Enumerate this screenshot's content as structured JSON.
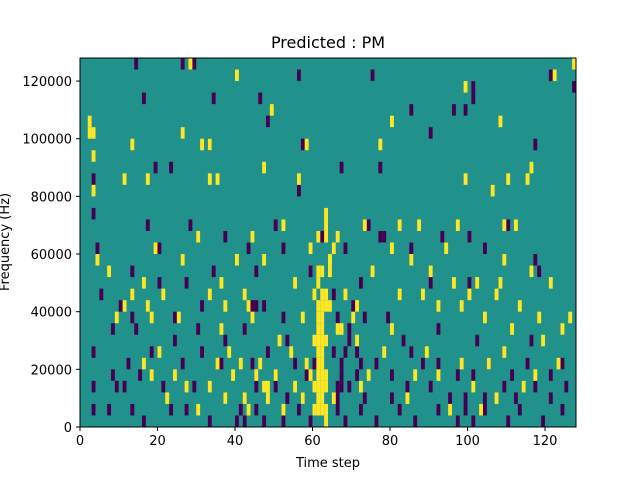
{
  "chart_data": {
    "type": "heatmap",
    "title": "Predicted : PM",
    "xlabel": "Time step",
    "ylabel": "Frequency (Hz)",
    "xlim": [
      0,
      128
    ],
    "ylim": [
      0,
      128000
    ],
    "xticks": [
      0,
      20,
      40,
      60,
      80,
      100,
      120
    ],
    "yticks": [
      0,
      20000,
      40000,
      60000,
      80000,
      100000,
      120000
    ],
    "colors": {
      "background": "#21918c",
      "low": "#440154",
      "high": "#fde725"
    },
    "cell": {
      "dt": 1,
      "df": 4000
    },
    "cells_high": [
      [
        3,
        20
      ],
      [
        3,
        23
      ],
      [
        3,
        25
      ],
      [
        28,
        31
      ],
      [
        40,
        30
      ],
      [
        49,
        27
      ],
      [
        80,
        26
      ],
      [
        99,
        29
      ],
      [
        108,
        26
      ],
      [
        116,
        22
      ],
      [
        122,
        30
      ],
      [
        127,
        31
      ],
      [
        2,
        25
      ],
      [
        2,
        26
      ],
      [
        13,
        24
      ],
      [
        26,
        25
      ],
      [
        31,
        24
      ],
      [
        33,
        24
      ],
      [
        58,
        24
      ],
      [
        77,
        24
      ],
      [
        11,
        21
      ],
      [
        17,
        21
      ],
      [
        33,
        21
      ],
      [
        35,
        21
      ],
      [
        47,
        22
      ],
      [
        56,
        21
      ],
      [
        99,
        21
      ],
      [
        106,
        20
      ],
      [
        110,
        21
      ],
      [
        115,
        21
      ],
      [
        44,
        16
      ],
      [
        61,
        16
      ],
      [
        52,
        17
      ],
      [
        73,
        17
      ],
      [
        82,
        17
      ],
      [
        87,
        17
      ],
      [
        97,
        17
      ],
      [
        109,
        17
      ],
      [
        112,
        17
      ],
      [
        40,
        14
      ],
      [
        47,
        14
      ],
      [
        64,
        14
      ],
      [
        36,
        12
      ],
      [
        42,
        11
      ],
      [
        55,
        12
      ],
      [
        82,
        11
      ],
      [
        100,
        11
      ],
      [
        102,
        12
      ],
      [
        108,
        12
      ],
      [
        21,
        11
      ],
      [
        13,
        11
      ],
      [
        11,
        10
      ],
      [
        9,
        9
      ],
      [
        17,
        10
      ],
      [
        18,
        9
      ],
      [
        25,
        9
      ],
      [
        37,
        10
      ],
      [
        43,
        10
      ],
      [
        61,
        10
      ],
      [
        62,
        10
      ],
      [
        63,
        10
      ],
      [
        61,
        9
      ],
      [
        62,
        9
      ],
      [
        61,
        8
      ],
      [
        62,
        8
      ],
      [
        61,
        7
      ],
      [
        62,
        7
      ],
      [
        63,
        7
      ],
      [
        62,
        6
      ],
      [
        61,
        5
      ],
      [
        62,
        5
      ],
      [
        59,
        15
      ],
      [
        61,
        13
      ],
      [
        62,
        13
      ],
      [
        61,
        12
      ],
      [
        63,
        11
      ],
      [
        60,
        11
      ],
      [
        64,
        10
      ],
      [
        66,
        8
      ],
      [
        67,
        8
      ],
      [
        71,
        7
      ],
      [
        61,
        4
      ],
      [
        62,
        4
      ],
      [
        63,
        4
      ],
      [
        61,
        3
      ],
      [
        62,
        3
      ],
      [
        63,
        3
      ],
      [
        61,
        2
      ],
      [
        62,
        2
      ],
      [
        60,
        1
      ],
      [
        61,
        1
      ],
      [
        62,
        1
      ],
      [
        63,
        1
      ],
      [
        60,
        3
      ],
      [
        61,
        6
      ],
      [
        62,
        11
      ],
      [
        63,
        16
      ],
      [
        63,
        17
      ],
      [
        63,
        18
      ],
      [
        64,
        13
      ],
      [
        64,
        14
      ],
      [
        65,
        15
      ],
      [
        66,
        16
      ],
      [
        68,
        11
      ],
      [
        70,
        9
      ],
      [
        71,
        10
      ],
      [
        75,
        13
      ],
      [
        80,
        15
      ],
      [
        85,
        14
      ],
      [
        88,
        11
      ],
      [
        90,
        13
      ],
      [
        92,
        10
      ],
      [
        94,
        15
      ],
      [
        96,
        12
      ],
      [
        98,
        10
      ],
      [
        104,
        9
      ],
      [
        107,
        11
      ],
      [
        109,
        14
      ],
      [
        113,
        10
      ],
      [
        116,
        13
      ],
      [
        118,
        9
      ],
      [
        121,
        12
      ],
      [
        124,
        8
      ],
      [
        126,
        9
      ],
      [
        4,
        14
      ],
      [
        7,
        13
      ],
      [
        16,
        12
      ],
      [
        19,
        15
      ],
      [
        26,
        14
      ],
      [
        30,
        16
      ],
      [
        33,
        11
      ],
      [
        36,
        8
      ],
      [
        38,
        6
      ],
      [
        41,
        5
      ],
      [
        44,
        9
      ],
      [
        45,
        4
      ],
      [
        46,
        5
      ],
      [
        48,
        3
      ],
      [
        51,
        7
      ],
      [
        54,
        6
      ],
      [
        57,
        9
      ],
      [
        59,
        4
      ],
      [
        63,
        0
      ],
      [
        65,
        2
      ],
      [
        72,
        3
      ],
      [
        74,
        4
      ],
      [
        78,
        6
      ],
      [
        80,
        8
      ],
      [
        84,
        2
      ],
      [
        86,
        4
      ],
      [
        89,
        6
      ],
      [
        92,
        4
      ],
      [
        95,
        1
      ],
      [
        98,
        5
      ],
      [
        101,
        3
      ],
      [
        103,
        1
      ],
      [
        105,
        5
      ],
      [
        107,
        2
      ],
      [
        109,
        6
      ],
      [
        111,
        8
      ],
      [
        114,
        3
      ],
      [
        117,
        4
      ],
      [
        119,
        7
      ],
      [
        123,
        5
      ],
      [
        16,
        5
      ],
      [
        18,
        4
      ],
      [
        20,
        6
      ],
      [
        22,
        2
      ],
      [
        24,
        4
      ],
      [
        27,
        3
      ],
      [
        30,
        1
      ],
      [
        33,
        3
      ],
      [
        35,
        5
      ],
      [
        37,
        2
      ],
      [
        39,
        4
      ],
      [
        42,
        2
      ],
      [
        43,
        1
      ],
      [
        47,
        3
      ],
      [
        48,
        2
      ],
      [
        50,
        4
      ],
      [
        52,
        1
      ],
      [
        55,
        3
      ],
      [
        57,
        2
      ],
      [
        58,
        5
      ],
      [
        60,
        7
      ]
    ],
    "cells_low": [
      [
        14,
        31
      ],
      [
        26,
        31
      ],
      [
        29,
        31
      ],
      [
        56,
        30
      ],
      [
        75,
        30
      ],
      [
        101,
        29
      ],
      [
        121,
        30
      ],
      [
        127,
        29
      ],
      [
        16,
        28
      ],
      [
        34,
        28
      ],
      [
        46,
        28
      ],
      [
        101,
        28
      ],
      [
        99,
        27
      ],
      [
        85,
        27
      ],
      [
        48,
        26
      ],
      [
        96,
        27
      ],
      [
        90,
        25
      ],
      [
        19,
        22
      ],
      [
        23,
        22
      ],
      [
        33,
        24
      ],
      [
        57,
        24
      ],
      [
        56,
        20
      ],
      [
        67,
        22
      ],
      [
        77,
        22
      ],
      [
        117,
        24
      ],
      [
        3,
        21
      ],
      [
        3,
        18
      ],
      [
        17,
        17
      ],
      [
        28,
        17
      ],
      [
        37,
        16
      ],
      [
        50,
        17
      ],
      [
        62,
        16
      ],
      [
        74,
        17
      ],
      [
        78,
        16
      ],
      [
        100,
        16
      ],
      [
        110,
        17
      ],
      [
        4,
        15
      ],
      [
        20,
        15
      ],
      [
        43,
        15
      ],
      [
        52,
        15
      ],
      [
        62,
        16
      ],
      [
        68,
        15
      ],
      [
        77,
        16
      ],
      [
        85,
        15
      ],
      [
        93,
        16
      ],
      [
        104,
        15
      ],
      [
        117,
        14
      ],
      [
        13,
        13
      ],
      [
        20,
        12
      ],
      [
        27,
        12
      ],
      [
        34,
        13
      ],
      [
        45,
        13
      ],
      [
        59,
        13
      ],
      [
        72,
        12
      ],
      [
        90,
        12
      ],
      [
        100,
        12
      ],
      [
        118,
        13
      ],
      [
        5,
        11
      ],
      [
        10,
        10
      ],
      [
        13,
        9
      ],
      [
        24,
        9
      ],
      [
        31,
        10
      ],
      [
        47,
        10
      ],
      [
        52,
        9
      ],
      [
        65,
        11
      ],
      [
        70,
        10
      ],
      [
        73,
        9
      ],
      [
        8,
        8
      ],
      [
        14,
        8
      ],
      [
        24,
        7
      ],
      [
        30,
        8
      ],
      [
        37,
        7
      ],
      [
        42,
        8
      ],
      [
        53,
        7
      ],
      [
        66,
        9
      ],
      [
        69,
        8
      ],
      [
        79,
        9
      ],
      [
        83,
        7
      ],
      [
        85,
        6
      ],
      [
        92,
        8
      ],
      [
        102,
        7
      ],
      [
        116,
        7
      ],
      [
        3,
        6
      ],
      [
        12,
        5
      ],
      [
        18,
        6
      ],
      [
        26,
        5
      ],
      [
        31,
        6
      ],
      [
        36,
        5
      ],
      [
        44,
        5
      ],
      [
        48,
        6
      ],
      [
        55,
        5
      ],
      [
        58,
        4
      ],
      [
        60,
        5
      ],
      [
        65,
        6
      ],
      [
        67,
        5
      ],
      [
        71,
        4
      ],
      [
        76,
        5
      ],
      [
        80,
        4
      ],
      [
        88,
        5
      ],
      [
        92,
        5
      ],
      [
        97,
        4
      ],
      [
        101,
        4
      ],
      [
        105,
        5
      ],
      [
        111,
        4
      ],
      [
        115,
        5
      ],
      [
        121,
        4
      ],
      [
        124,
        5
      ],
      [
        3,
        3
      ],
      [
        8,
        4
      ],
      [
        9,
        3
      ],
      [
        11,
        3
      ],
      [
        15,
        4
      ],
      [
        21,
        3
      ],
      [
        29,
        3
      ],
      [
        37,
        2
      ],
      [
        45,
        3
      ],
      [
        50,
        3
      ],
      [
        53,
        2
      ],
      [
        57,
        2
      ],
      [
        66,
        3
      ],
      [
        69,
        3
      ],
      [
        73,
        2
      ],
      [
        80,
        2
      ],
      [
        84,
        3
      ],
      [
        90,
        3
      ],
      [
        95,
        2
      ],
      [
        99,
        2
      ],
      [
        104,
        2
      ],
      [
        109,
        3
      ],
      [
        112,
        2
      ],
      [
        117,
        3
      ],
      [
        121,
        2
      ],
      [
        125,
        3
      ],
      [
        3,
        1
      ],
      [
        7,
        1
      ],
      [
        13,
        1
      ],
      [
        16,
        0
      ],
      [
        23,
        1
      ],
      [
        27,
        1
      ],
      [
        33,
        0
      ],
      [
        40,
        0
      ],
      [
        41,
        1
      ],
      [
        42,
        0
      ],
      [
        45,
        1
      ],
      [
        47,
        0
      ],
      [
        52,
        0
      ],
      [
        56,
        1
      ],
      [
        59,
        0
      ],
      [
        66,
        1
      ],
      [
        68,
        0
      ],
      [
        72,
        1
      ],
      [
        76,
        0
      ],
      [
        82,
        1
      ],
      [
        86,
        0
      ],
      [
        92,
        1
      ],
      [
        97,
        0
      ],
      [
        99,
        1
      ],
      [
        101,
        0
      ],
      [
        104,
        1
      ],
      [
        110,
        0
      ],
      [
        113,
        1
      ],
      [
        119,
        0
      ],
      [
        124,
        1
      ],
      [
        45,
        10
      ],
      [
        44,
        10
      ],
      [
        62,
        1
      ],
      [
        66,
        2
      ],
      [
        67,
        3
      ],
      [
        67,
        4
      ],
      [
        68,
        6
      ],
      [
        69,
        7
      ],
      [
        71,
        6
      ],
      [
        72,
        5
      ]
    ]
  }
}
